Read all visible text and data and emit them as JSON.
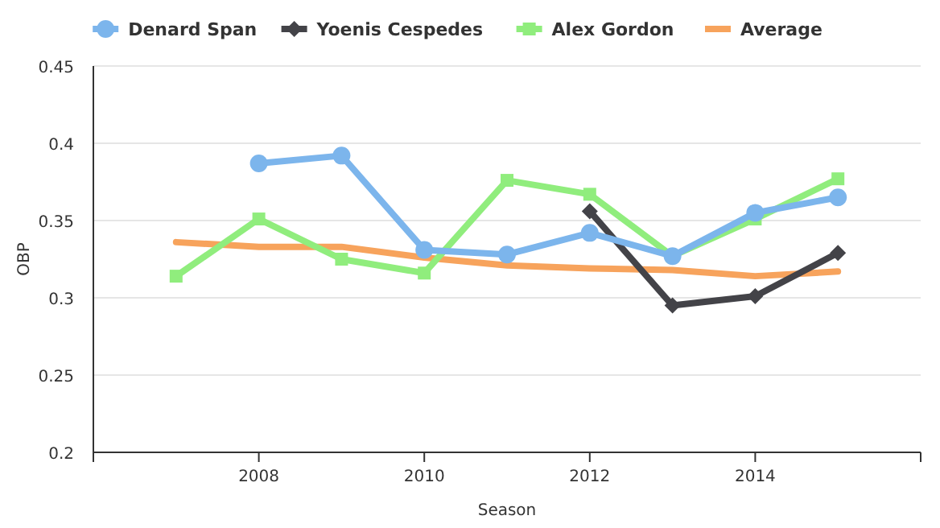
{
  "chart_data": {
    "type": "line",
    "xlabel": "Season",
    "ylabel": "OBP",
    "x": [
      2007,
      2008,
      2009,
      2010,
      2011,
      2012,
      2013,
      2014,
      2015
    ],
    "xlim": [
      2006,
      2016
    ],
    "xticks": [
      2008,
      2010,
      2012,
      2014
    ],
    "ylim": [
      0.2,
      0.45
    ],
    "yticks": [
      0.2,
      0.25,
      0.3,
      0.35,
      0.4,
      0.45
    ],
    "grid": "y",
    "legend": "top",
    "line_style": "solid",
    "series": [
      {
        "name": "Denard Span",
        "color": "#7cb5ec",
        "marker": "circle",
        "values": [
          null,
          0.387,
          0.392,
          0.331,
          0.328,
          0.342,
          0.327,
          0.355,
          0.365
        ]
      },
      {
        "name": "Yoenis Cespedes",
        "color": "#434348",
        "marker": "diamond",
        "values": [
          null,
          null,
          null,
          null,
          null,
          0.356,
          0.295,
          0.301,
          0.329
        ]
      },
      {
        "name": "Alex Gordon",
        "color": "#90ed7d",
        "marker": "square",
        "values": [
          0.314,
          0.351,
          0.325,
          0.316,
          0.376,
          0.367,
          0.327,
          0.351,
          0.377
        ]
      },
      {
        "name": "Average",
        "color": "#f7a35c",
        "marker": "none",
        "values": [
          0.336,
          0.333,
          0.333,
          0.326,
          0.321,
          0.319,
          0.318,
          0.314,
          0.317
        ]
      }
    ]
  }
}
